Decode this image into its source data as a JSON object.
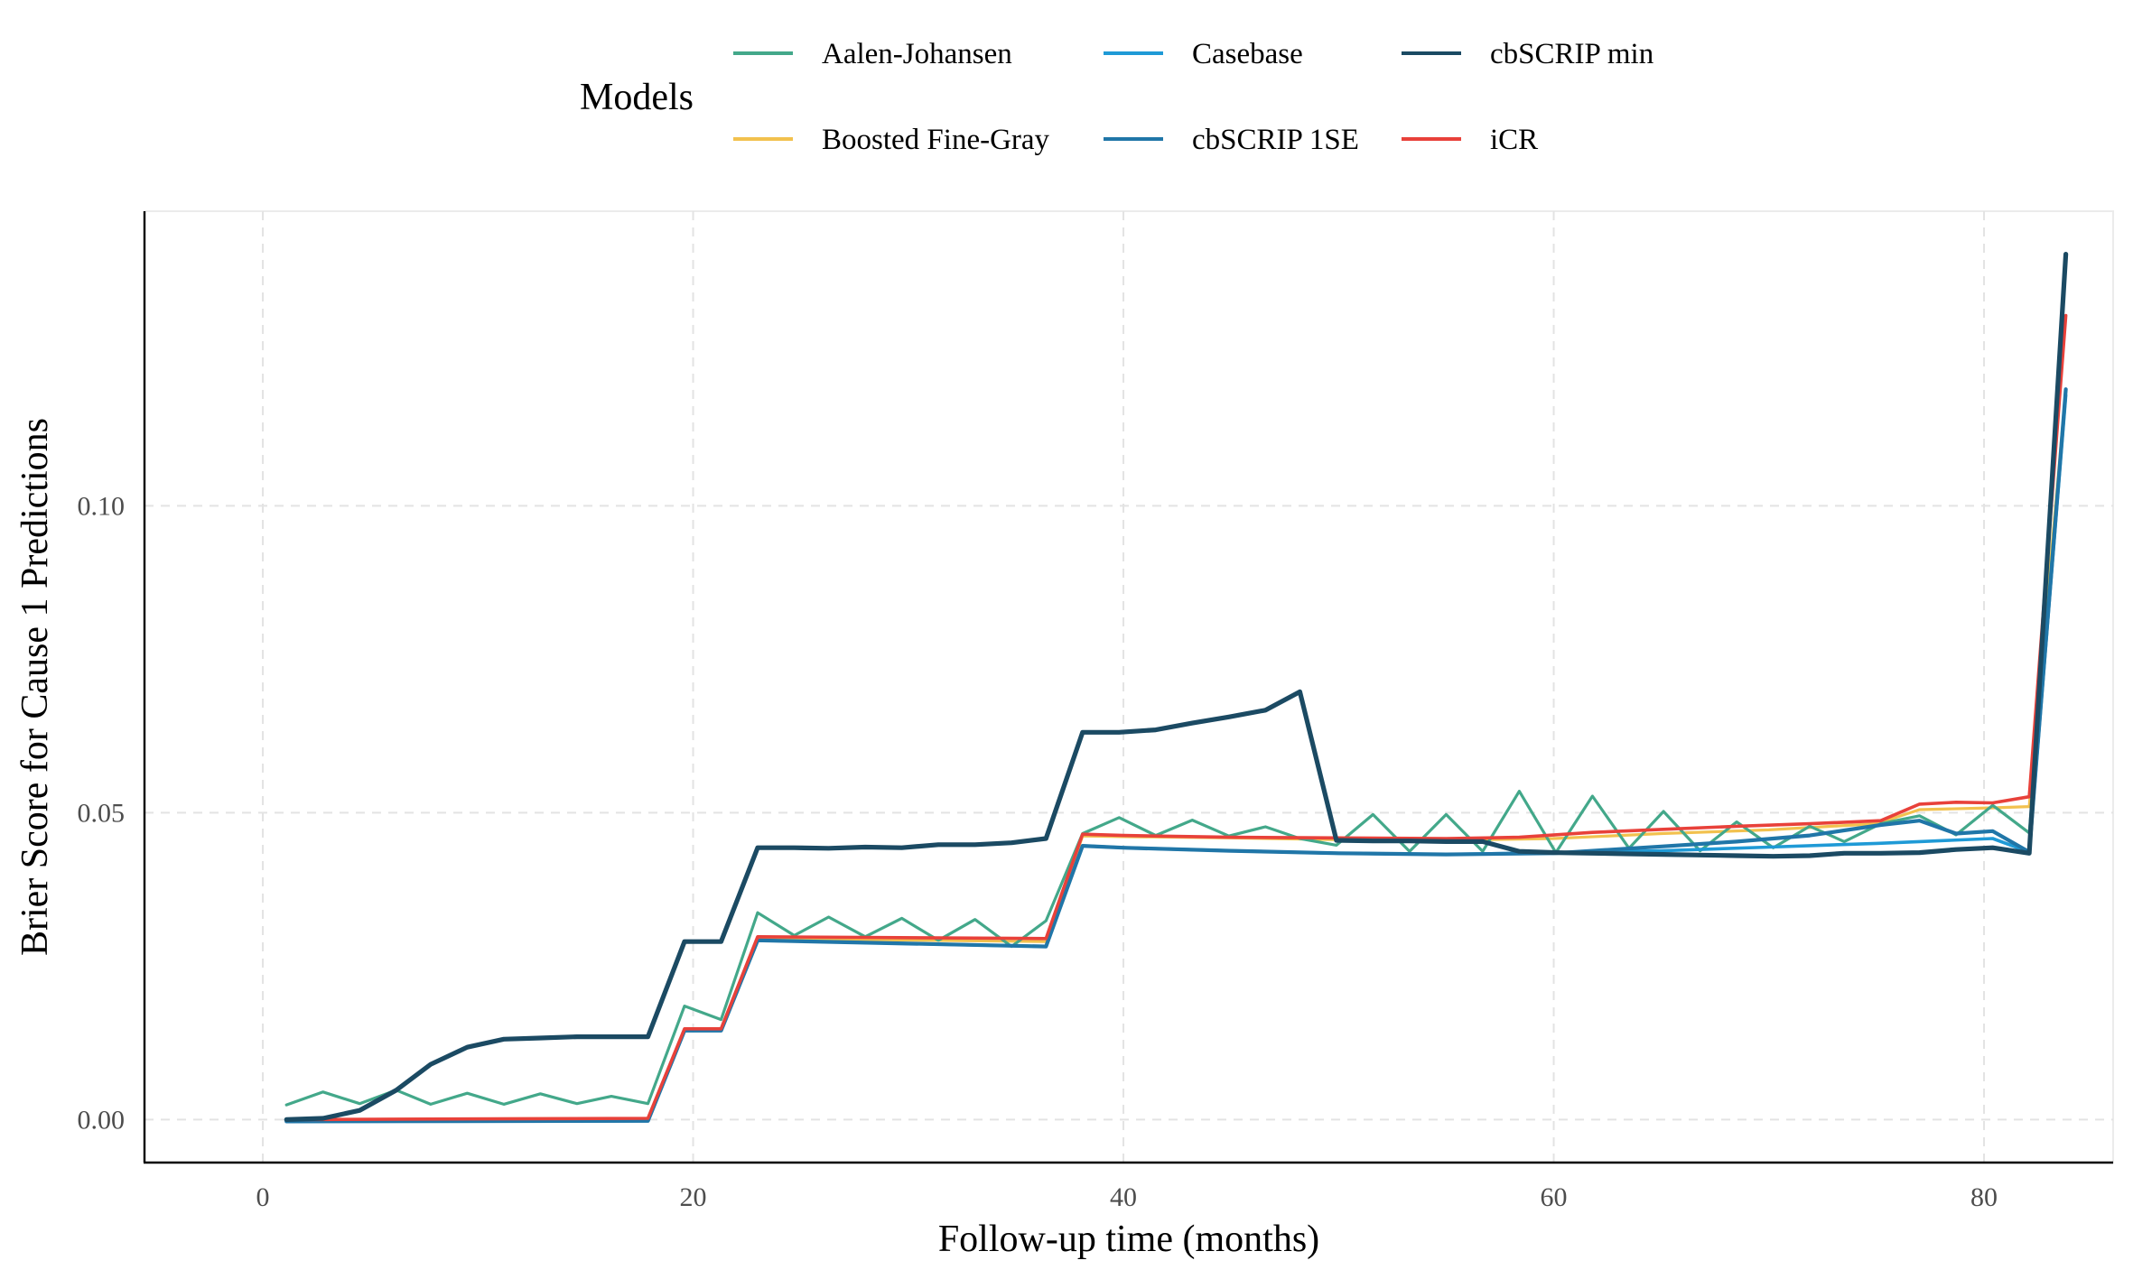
{
  "chart_data": {
    "type": "line",
    "title": "",
    "xlabel": "Follow-up time (months)",
    "ylabel": "Brier Score for Cause 1 Predictions",
    "xlim": [
      -5.5,
      86
    ],
    "ylim": [
      -0.007,
      0.148
    ],
    "x_ticks": [
      0,
      20,
      40,
      60,
      80
    ],
    "x_tick_labels": [
      "0",
      "20",
      "40",
      "60",
      "80"
    ],
    "y_ticks": [
      0.0,
      0.05,
      0.1
    ],
    "y_tick_labels": [
      "0.00",
      "0.05",
      "0.10"
    ],
    "grid": true,
    "legend": {
      "title": "Models",
      "position": "top"
    },
    "series": [
      {
        "name": "Aalen-Johansen",
        "color": "#43a88a",
        "x": [
          1.1,
          2.8,
          4.5,
          6.2,
          7.8,
          9.5,
          11.2,
          12.9,
          14.6,
          16.2,
          17.9,
          19.6,
          21.3,
          23.0,
          24.7,
          26.3,
          28.0,
          29.7,
          31.4,
          33.1,
          34.8,
          36.4,
          38.1,
          39.8,
          41.5,
          43.2,
          44.9,
          46.6,
          48.2,
          49.9,
          51.6,
          53.3,
          55.0,
          56.7,
          58.4,
          60.1,
          61.8,
          63.5,
          65.1,
          66.8,
          68.5,
          70.2,
          71.9,
          73.5,
          75.2,
          77.0,
          78.7,
          80.4,
          82.1,
          83.8
        ],
        "values": [
          0.0024,
          0.0045,
          0.0026,
          0.0048,
          0.0025,
          0.0043,
          0.0025,
          0.0042,
          0.0026,
          0.0038,
          0.0026,
          0.0185,
          0.0163,
          0.0337,
          0.03,
          0.033,
          0.0298,
          0.0328,
          0.0292,
          0.0326,
          0.0282,
          0.0324,
          0.0466,
          0.0492,
          0.0463,
          0.0488,
          0.0462,
          0.0477,
          0.0458,
          0.0447,
          0.0497,
          0.0437,
          0.0497,
          0.0437,
          0.0535,
          0.0435,
          0.0527,
          0.0442,
          0.0502,
          0.0438,
          0.0485,
          0.0443,
          0.0478,
          0.0453,
          0.0482,
          0.0495,
          0.0464,
          0.0512,
          0.0467,
          0.119
        ]
      },
      {
        "name": "Boosted Fine-Gray",
        "color": "#f2c14e",
        "x": [
          1.1,
          17.9,
          19.6,
          21.3,
          23.0,
          36.4,
          38.1,
          40.0,
          45.0,
          50.0,
          55.0,
          60.0,
          65.0,
          70.0,
          75.0,
          77.0,
          80.4,
          82.1,
          83.8
        ],
        "values": [
          0.0,
          0.0002,
          0.0145,
          0.0146,
          0.0295,
          0.029,
          0.0462,
          0.0461,
          0.0459,
          0.0456,
          0.0455,
          0.0458,
          0.0466,
          0.0472,
          0.0482,
          0.0505,
          0.0508,
          0.051,
          0.119
        ]
      },
      {
        "name": "Casebase",
        "color": "#1f9ad6",
        "x": [
          1.1,
          17.9,
          19.6,
          21.3,
          23.0,
          36.4,
          38.1,
          40.0,
          45.0,
          50.0,
          55.0,
          60.0,
          65.0,
          70.0,
          75.0,
          77.0,
          80.4,
          82.1,
          83.8
        ],
        "values": [
          -0.0003,
          -0.0002,
          0.0145,
          0.0145,
          0.0292,
          0.0282,
          0.0446,
          0.0443,
          0.0438,
          0.0434,
          0.0432,
          0.0435,
          0.0438,
          0.0444,
          0.045,
          0.0453,
          0.0458,
          0.0436,
          0.118
        ]
      },
      {
        "name": "cbSCRIP 1SE",
        "color": "#2076a8",
        "x": [
          1.1,
          17.9,
          19.6,
          21.3,
          23.0,
          36.4,
          38.1,
          40.0,
          45.0,
          50.0,
          55.0,
          60.0,
          65.0,
          68.5,
          71.9,
          75.2,
          77.0,
          78.7,
          80.4,
          82.1,
          83.8
        ],
        "values": [
          -0.0003,
          -0.0002,
          0.0145,
          0.0145,
          0.0292,
          0.0282,
          0.0446,
          0.0443,
          0.0438,
          0.0434,
          0.0432,
          0.0434,
          0.0445,
          0.0453,
          0.0463,
          0.048,
          0.0487,
          0.0466,
          0.047,
          0.0436,
          0.119
        ]
      },
      {
        "name": "cbSCRIP min",
        "color": "#1b4a63",
        "x": [
          1.1,
          2.8,
          4.5,
          6.2,
          7.8,
          9.5,
          11.2,
          12.9,
          14.6,
          16.2,
          17.9,
          19.6,
          21.3,
          23.0,
          24.7,
          26.3,
          28.0,
          29.7,
          31.4,
          33.1,
          34.8,
          36.4,
          38.1,
          39.8,
          41.5,
          43.2,
          44.9,
          46.6,
          48.2,
          49.9,
          51.6,
          53.3,
          55.0,
          56.7,
          58.4,
          60.1,
          61.8,
          63.5,
          65.1,
          66.8,
          68.5,
          70.2,
          71.9,
          73.5,
          75.2,
          77.0,
          78.7,
          80.4,
          82.1,
          83.8
        ],
        "values": [
          0.0,
          0.0002,
          0.0015,
          0.0048,
          0.009,
          0.0118,
          0.0131,
          0.0133,
          0.0135,
          0.0135,
          0.0135,
          0.029,
          0.029,
          0.0443,
          0.0443,
          0.0442,
          0.0444,
          0.0443,
          0.0448,
          0.0448,
          0.0451,
          0.0458,
          0.0631,
          0.0631,
          0.0635,
          0.0646,
          0.0656,
          0.0667,
          0.0697,
          0.0455,
          0.0454,
          0.0454,
          0.0453,
          0.0453,
          0.0437,
          0.0435,
          0.0434,
          0.0433,
          0.0432,
          0.0431,
          0.043,
          0.0429,
          0.043,
          0.0434,
          0.0434,
          0.0435,
          0.044,
          0.0443,
          0.0434,
          0.141
        ]
      },
      {
        "name": "iCR",
        "color": "#e8413a",
        "x": [
          1.1,
          17.9,
          19.6,
          21.3,
          23.0,
          36.4,
          38.1,
          40.0,
          45.0,
          50.0,
          55.0,
          58.4,
          61.8,
          65.1,
          68.5,
          71.9,
          75.2,
          77.0,
          78.7,
          80.4,
          82.1,
          83.8
        ],
        "values": [
          0.0,
          0.0002,
          0.0148,
          0.0148,
          0.0298,
          0.0295,
          0.0465,
          0.0463,
          0.046,
          0.0459,
          0.0458,
          0.046,
          0.0468,
          0.0473,
          0.0478,
          0.0482,
          0.0487,
          0.0514,
          0.0517,
          0.0516,
          0.0526,
          0.131
        ]
      }
    ]
  }
}
